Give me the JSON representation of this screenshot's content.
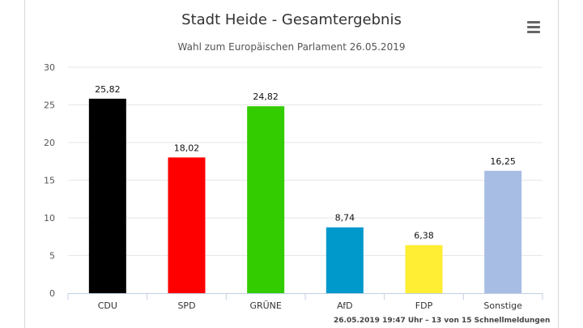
{
  "header": {
    "title": "Stadt Heide - Gesamtergebnis",
    "subtitle": "Wahl zum Europäischen Parlament 26.05.2019",
    "menu_icon": "hamburger-menu-icon"
  },
  "footer": {
    "credits": "26.05.2019 19:47 Uhr – 13 von 15 Schnellmeldungen"
  },
  "chart_data": {
    "type": "bar",
    "title": "Stadt Heide - Gesamtergebnis",
    "subtitle": "Wahl zum Europäischen Parlament 26.05.2019",
    "xlabel": "",
    "ylabel": "",
    "ylim": [
      0,
      30
    ],
    "yticks": [
      0,
      5,
      10,
      15,
      20,
      25,
      30
    ],
    "grid": true,
    "legend": "none",
    "categories": [
      "CDU",
      "SPD",
      "GRÜNE",
      "AfD",
      "FDP",
      "Sonstige"
    ],
    "values": [
      25.82,
      18.02,
      24.82,
      8.74,
      6.38,
      16.25
    ],
    "value_labels": [
      "25,82",
      "18,02",
      "24,82",
      "8,74",
      "6,38",
      "16,25"
    ],
    "colors": [
      "#000000",
      "#ff0000",
      "#33cc00",
      "#0099cc",
      "#ffee33",
      "#a8bde4"
    ]
  }
}
